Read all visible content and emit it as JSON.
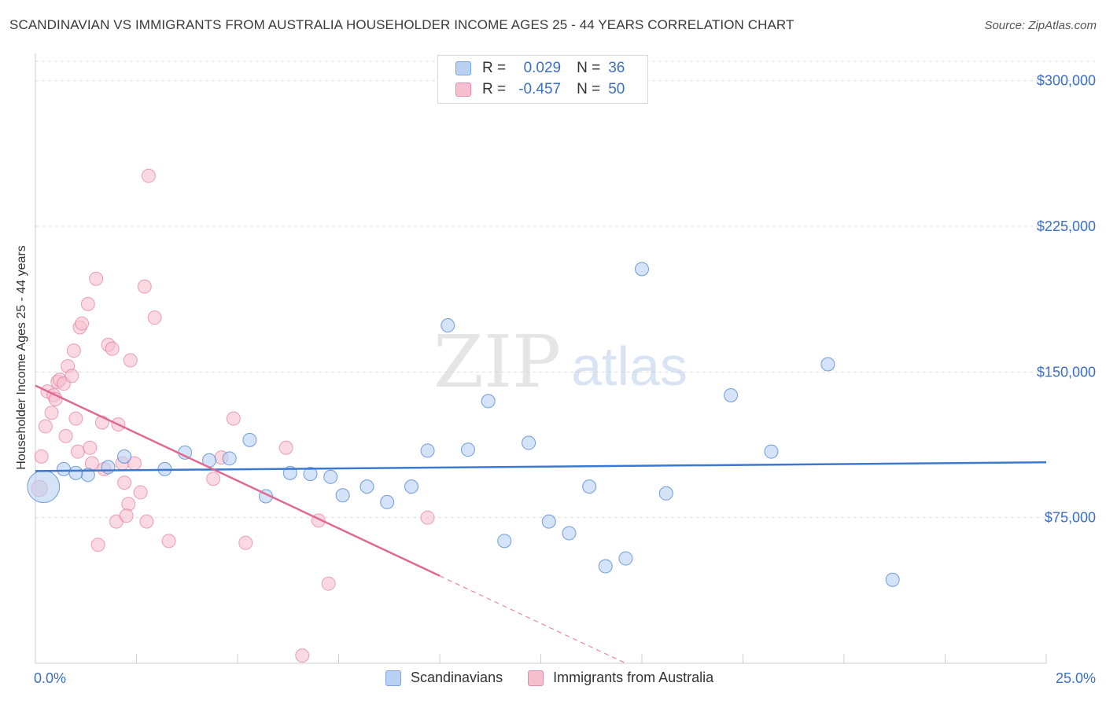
{
  "header": {
    "title": "SCANDINAVIAN VS IMMIGRANTS FROM AUSTRALIA HOUSEHOLDER INCOME AGES 25 - 44 YEARS CORRELATION CHART",
    "source": "Source: ZipAtlas.com"
  },
  "legend_top": {
    "rows": [
      {
        "r_key": "R =",
        "r_value": "0.029",
        "n_key": "N =",
        "n_value": "36"
      },
      {
        "r_key": "R =",
        "r_value": "-0.457",
        "n_key": "N =",
        "n_value": "50"
      }
    ]
  },
  "legend_bottom": {
    "items": [
      {
        "label": "Scandinavians"
      },
      {
        "label": "Immigrants from Australia"
      }
    ]
  },
  "watermark": {
    "part1": "ZIP",
    "part2": "atlas"
  },
  "colors": {
    "blue": "#3b78d1",
    "blue_fill": "#b8d0f2",
    "pink": "#e0698f",
    "pink_fill": "#f6bfd0",
    "axis_text": "#3b6fc6",
    "grid": "#dddddd"
  },
  "chart_data": {
    "type": "scatter",
    "title": "SCANDINAVIAN VS IMMIGRANTS FROM AUSTRALIA HOUSEHOLDER INCOME AGES 25 - 44 YEARS CORRELATION CHART",
    "xlabel": "",
    "ylabel": "Householder Income Ages 25 - 44 years",
    "xlim": [
      0,
      25
    ],
    "ylim": [
      0,
      310000
    ],
    "x_tick_labels": [
      "0.0%",
      "25.0%"
    ],
    "y_ticks": [
      75000,
      150000,
      225000,
      300000
    ],
    "y_tick_labels": [
      "$75,000",
      "$150,000",
      "$225,000",
      "$300,000"
    ],
    "series": [
      {
        "name": "Scandinavians",
        "color": "#3b78d1",
        "r": 0.029,
        "n": 36,
        "trend": [
          [
            0,
            99000
          ],
          [
            25,
            103500
          ]
        ],
        "points": [
          [
            0.2,
            91000,
            2.4
          ],
          [
            0.7,
            100000,
            1
          ],
          [
            1.3,
            97000,
            1
          ],
          [
            1.8,
            101000,
            1
          ],
          [
            2.2,
            106500,
            1
          ],
          [
            3.2,
            100000,
            1
          ],
          [
            3.7,
            108500,
            1
          ],
          [
            4.3,
            104500,
            1
          ],
          [
            4.8,
            105500,
            1
          ],
          [
            5.3,
            115000,
            1
          ],
          [
            5.7,
            86000,
            1
          ],
          [
            6.3,
            98000,
            1
          ],
          [
            6.8,
            97500,
            1
          ],
          [
            7.3,
            96000,
            1
          ],
          [
            7.6,
            86500,
            1
          ],
          [
            8.2,
            91000,
            1
          ],
          [
            8.7,
            83000,
            1
          ],
          [
            9.3,
            91000,
            1
          ],
          [
            9.7,
            109500,
            1
          ],
          [
            10.2,
            174000,
            1
          ],
          [
            10.7,
            110000,
            1
          ],
          [
            11.2,
            135000,
            1
          ],
          [
            11.6,
            63000,
            1
          ],
          [
            12.2,
            113500,
            1
          ],
          [
            12.7,
            73000,
            1
          ],
          [
            13.2,
            67000,
            1
          ],
          [
            13.7,
            91000,
            1
          ],
          [
            14.1,
            50000,
            1
          ],
          [
            14.6,
            54000,
            1
          ],
          [
            15.0,
            203000,
            1
          ],
          [
            15.6,
            87500,
            1
          ],
          [
            17.2,
            138000,
            1
          ],
          [
            18.2,
            109000,
            1
          ],
          [
            19.6,
            154000,
            1
          ],
          [
            21.2,
            43000,
            1
          ],
          [
            1.0,
            98000,
            1
          ]
        ]
      },
      {
        "name": "Immigrants from Australia",
        "color": "#e0698f",
        "r": -0.457,
        "n": 50,
        "trend": [
          [
            0,
            143000
          ],
          [
            10,
            45000
          ]
        ],
        "trend_dashed": [
          [
            10,
            45000
          ],
          [
            14.6,
            0
          ]
        ],
        "points": [
          [
            0.1,
            90000,
            1.2
          ],
          [
            0.15,
            106500,
            1
          ],
          [
            0.25,
            122000,
            1
          ],
          [
            0.3,
            140000,
            1
          ],
          [
            0.4,
            129000,
            1
          ],
          [
            0.45,
            138000,
            1
          ],
          [
            0.5,
            136000,
            1
          ],
          [
            0.55,
            145000,
            1
          ],
          [
            0.6,
            146000,
            1
          ],
          [
            0.7,
            144000,
            1
          ],
          [
            0.75,
            117000,
            1
          ],
          [
            0.8,
            153000,
            1
          ],
          [
            0.9,
            148000,
            1
          ],
          [
            0.95,
            161000,
            1
          ],
          [
            1.0,
            126000,
            1
          ],
          [
            1.05,
            109000,
            1
          ],
          [
            1.1,
            173000,
            1
          ],
          [
            1.15,
            175000,
            1
          ],
          [
            1.3,
            185000,
            1
          ],
          [
            1.35,
            111000,
            1
          ],
          [
            1.4,
            103000,
            1
          ],
          [
            1.5,
            198000,
            1
          ],
          [
            1.55,
            61000,
            1
          ],
          [
            1.65,
            124000,
            1
          ],
          [
            1.7,
            100000,
            1
          ],
          [
            1.8,
            164000,
            1
          ],
          [
            1.9,
            162000,
            1
          ],
          [
            2.0,
            73000,
            1
          ],
          [
            2.05,
            123000,
            1
          ],
          [
            2.15,
            103000,
            1
          ],
          [
            2.2,
            93000,
            1
          ],
          [
            2.3,
            82000,
            1
          ],
          [
            2.35,
            156000,
            1
          ],
          [
            2.45,
            103000,
            1
          ],
          [
            2.6,
            88000,
            1
          ],
          [
            2.7,
            194000,
            1
          ],
          [
            2.8,
            251000,
            1
          ],
          [
            2.95,
            178000,
            1
          ],
          [
            2.75,
            73000,
            1
          ],
          [
            2.25,
            76000,
            1
          ],
          [
            3.3,
            63000,
            1
          ],
          [
            4.4,
            95000,
            1
          ],
          [
            4.6,
            106000,
            1
          ],
          [
            4.9,
            126000,
            1
          ],
          [
            5.2,
            62000,
            1
          ],
          [
            6.2,
            111000,
            1
          ],
          [
            6.6,
            4000,
            1
          ],
          [
            7.0,
            73500,
            1
          ],
          [
            7.25,
            41000,
            1
          ],
          [
            9.7,
            75000,
            1
          ]
        ]
      }
    ]
  }
}
